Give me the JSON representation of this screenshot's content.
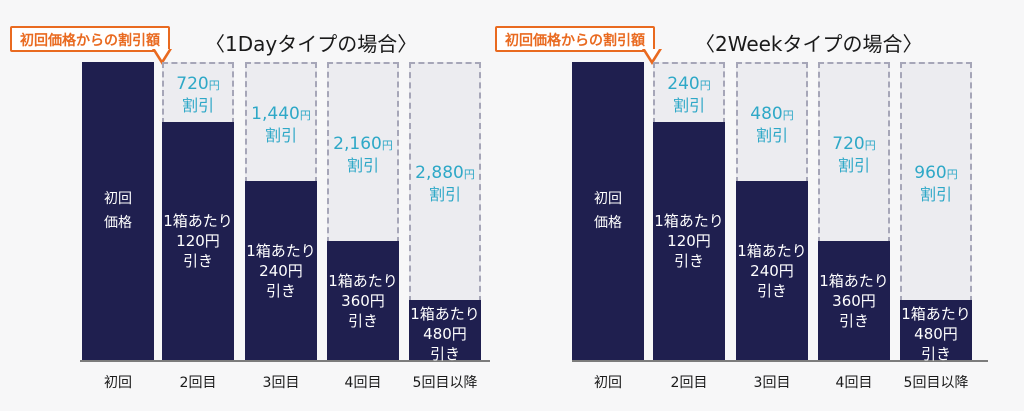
{
  "chart_data": [
    {
      "type": "bar",
      "title": "〈1Dayタイプの場合〉",
      "callout": "初回価格からの割引額",
      "categories": [
        "初回",
        "2回目",
        "3回目",
        "4回目",
        "5回目以降"
      ],
      "initial_bar_label": "初回\n価格",
      "series": [
        {
          "values": [
            0,
            720,
            1440,
            2160,
            2880
          ]
        }
      ],
      "bar_labels": [
        "",
        "1箱あたり\n120円\n引き",
        "1箱あたり\n240円\n引き",
        "1箱あたり\n360円\n引き",
        "1箱あたり\n480円\n引き"
      ],
      "discount_labels": [
        {
          "amount": "",
          "unit": "",
          "suffix": ""
        },
        {
          "amount": "720",
          "unit": "円",
          "suffix": "割引"
        },
        {
          "amount": "1,440",
          "unit": "円",
          "suffix": "割引"
        },
        {
          "amount": "2,160",
          "unit": "円",
          "suffix": "割引"
        },
        {
          "amount": "2,880",
          "unit": "円",
          "suffix": "割引"
        }
      ],
      "max_value": 3600
    },
    {
      "type": "bar",
      "title": "〈2Weekタイプの場合〉",
      "callout": "初回価格からの割引額",
      "categories": [
        "初回",
        "2回目",
        "3回目",
        "4回目",
        "5回目以降"
      ],
      "initial_bar_label": "初回\n価格",
      "series": [
        {
          "values": [
            0,
            240,
            480,
            720,
            960
          ]
        }
      ],
      "bar_labels": [
        "",
        "1箱あたり\n120円\n引き",
        "1箱あたり\n240円\n引き",
        "1箱あたり\n360円\n引き",
        "1箱あたり\n480円\n引き"
      ],
      "discount_labels": [
        {
          "amount": "",
          "unit": "",
          "suffix": ""
        },
        {
          "amount": "240",
          "unit": "円",
          "suffix": "割引"
        },
        {
          "amount": "480",
          "unit": "円",
          "suffix": "割引"
        },
        {
          "amount": "720",
          "unit": "円",
          "suffix": "割引"
        },
        {
          "amount": "960",
          "unit": "円",
          "suffix": "割引"
        }
      ],
      "max_value": 1200
    }
  ]
}
